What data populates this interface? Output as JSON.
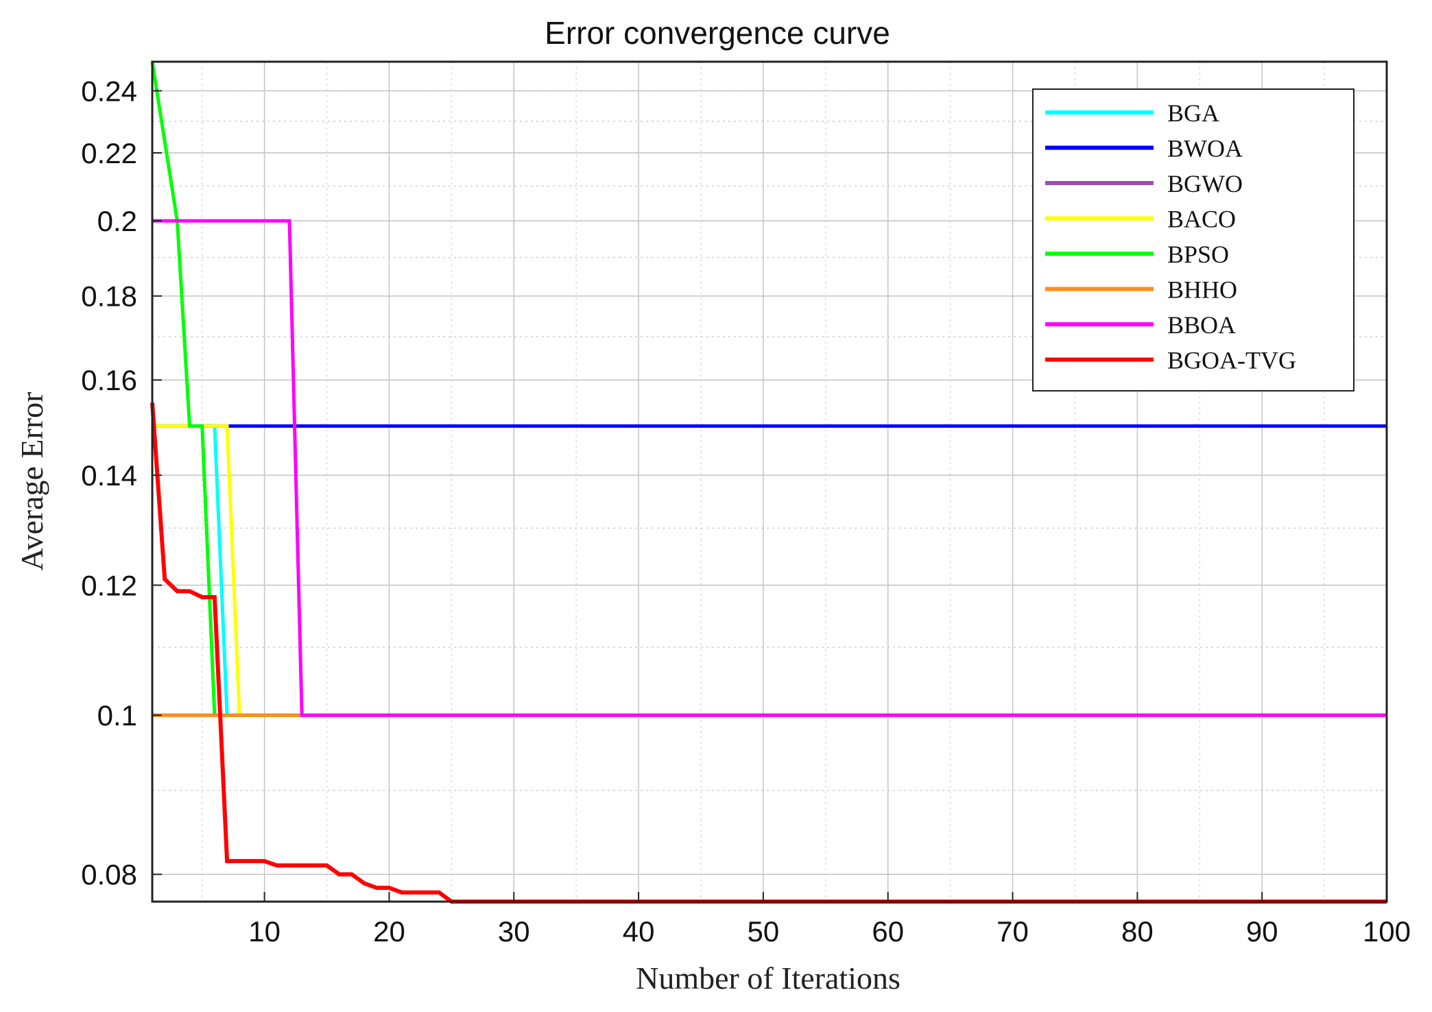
{
  "chart_data": {
    "type": "line",
    "title": "Error convergence curve",
    "xlabel": "Number of Iterations",
    "ylabel": "Average Error",
    "y_scale": "log",
    "xlim": [
      1,
      100
    ],
    "ylim": [
      0.077,
      0.25
    ],
    "x_ticks": [
      10,
      20,
      30,
      40,
      50,
      60,
      70,
      80,
      90,
      100
    ],
    "x_tick_labels": [
      "10",
      "20",
      "30",
      "40",
      "50",
      "60",
      "70",
      "80",
      "90",
      "100"
    ],
    "y_ticks": [
      0.08,
      0.1,
      0.12,
      0.14,
      0.16,
      0.18,
      0.2,
      0.22,
      0.24
    ],
    "y_tick_labels": [
      "0.08",
      "0.1",
      "0.12",
      "0.14",
      "0.16",
      "0.18",
      "0.2",
      "0.22",
      "0.24"
    ],
    "grid": true,
    "legend_position": "top-right",
    "series": [
      {
        "name": "BGA",
        "color": "#00ffff",
        "x": [
          1,
          6,
          7,
          100
        ],
        "y": [
          0.15,
          0.15,
          0.1,
          0.1
        ]
      },
      {
        "name": "BWOA",
        "color": "#0000ff",
        "x": [
          1,
          100
        ],
        "y": [
          0.15,
          0.15
        ]
      },
      {
        "name": "BGWO",
        "color": "#9b4fa8",
        "x": [
          1,
          100
        ],
        "y": [
          0.1,
          0.1
        ]
      },
      {
        "name": "BACO",
        "color": "#ffff00",
        "x": [
          1,
          7,
          8,
          100
        ],
        "y": [
          0.15,
          0.15,
          0.1,
          0.1
        ]
      },
      {
        "name": "BPSO",
        "color": "#00ff00",
        "x": [
          1,
          3,
          4,
          5,
          6,
          100
        ],
        "y": [
          0.25,
          0.2,
          0.15,
          0.15,
          0.1,
          0.1
        ]
      },
      {
        "name": "BHHO",
        "color": "#ff8c1a",
        "x": [
          1,
          100
        ],
        "y": [
          0.1,
          0.1
        ]
      },
      {
        "name": "BBOA",
        "color": "#ff00ff",
        "x": [
          1,
          12,
          13,
          100
        ],
        "y": [
          0.2,
          0.2,
          0.1,
          0.1
        ]
      },
      {
        "name": "BGOA-TVG",
        "color": "#ff0000",
        "x": [
          1,
          2,
          3,
          4,
          5,
          6,
          7,
          8,
          9,
          10,
          11,
          12,
          13,
          14,
          15,
          16,
          17,
          18,
          19,
          20,
          21,
          22,
          23,
          24,
          25,
          100
        ],
        "y": [
          0.155,
          0.121,
          0.119,
          0.119,
          0.118,
          0.118,
          0.0815,
          0.0815,
          0.0815,
          0.0815,
          0.081,
          0.081,
          0.081,
          0.081,
          0.081,
          0.08,
          0.08,
          0.079,
          0.0785,
          0.0785,
          0.078,
          0.078,
          0.078,
          0.078,
          0.077,
          0.077
        ]
      }
    ]
  }
}
